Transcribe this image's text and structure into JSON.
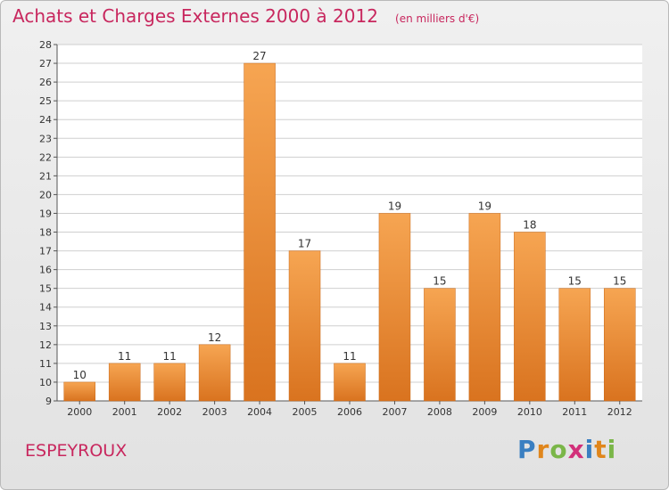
{
  "header": {
    "title": "Achats et Charges Externes 2000 à 2012",
    "subtitle": "(en milliers d'€)"
  },
  "footer": {
    "commune": "ESPEYROUX",
    "logo": "Proxiti"
  },
  "colors": {
    "title": "#c8275e",
    "bar_top": "#f6a552",
    "bar_bottom": "#d9731f",
    "grid": "#cfcfcf"
  },
  "chart_data": {
    "type": "bar",
    "categories": [
      "2000",
      "2001",
      "2002",
      "2003",
      "2004",
      "2005",
      "2006",
      "2007",
      "2008",
      "2009",
      "2010",
      "2011",
      "2012"
    ],
    "values": [
      10,
      11,
      11,
      12,
      27,
      17,
      11,
      19,
      15,
      19,
      18,
      15,
      15
    ],
    "ylim": [
      9,
      28
    ],
    "yticks": [
      9,
      10,
      11,
      12,
      13,
      14,
      15,
      16,
      17,
      18,
      19,
      20,
      21,
      22,
      23,
      24,
      25,
      26,
      27,
      28
    ],
    "grid": true,
    "legend": "none"
  }
}
